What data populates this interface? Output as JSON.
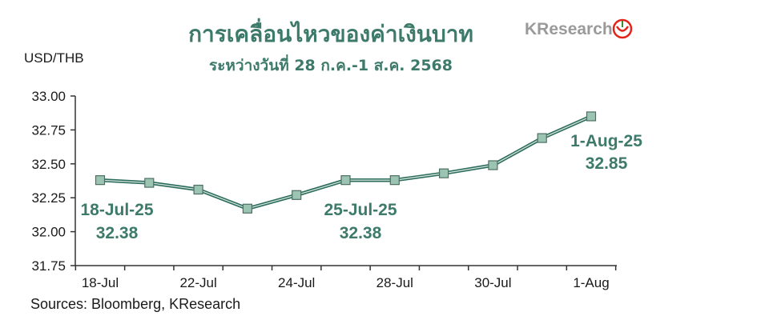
{
  "brand": {
    "logo_k": "K",
    "logo_rest": "Research",
    "logo_color": "#9a9a9a",
    "emblem_color": "#e2231a"
  },
  "colors": {
    "accent": "#3d7a6a",
    "line": "#2f6e5e",
    "marker_fill": "#9cc4b3",
    "axis": "#333333"
  },
  "chart_data": {
    "type": "line",
    "title": "การเคลื่อนไหวของค่าเงินบาท",
    "subtitle": "ระหว่างวันที่ 28 ก.ค.-1 ส.ค. 2568",
    "ylabel": "USD/THB",
    "xlabel": "",
    "ylim": [
      31.75,
      33.0
    ],
    "yticks": [
      "33.00",
      "32.75",
      "32.50",
      "32.25",
      "32.00",
      "31.75"
    ],
    "xtick_labels": [
      "18-Jul",
      "22-Jul",
      "24-Jul",
      "28-Jul",
      "30-Jul",
      "1-Aug"
    ],
    "values": [
      32.38,
      32.36,
      32.31,
      32.17,
      32.27,
      32.38,
      32.38,
      32.43,
      32.49,
      32.69,
      32.85
    ],
    "grid": false,
    "annotations": [
      {
        "date": "18-Jul-25",
        "value": "32.38"
      },
      {
        "date": "25-Jul-25",
        "value": "32.38"
      },
      {
        "date": "1-Aug-25",
        "value": "32.85"
      }
    ],
    "source": "Sources: Bloomberg, KResearch"
  }
}
